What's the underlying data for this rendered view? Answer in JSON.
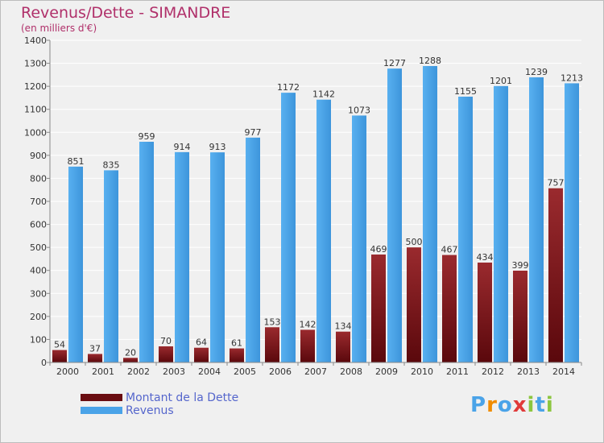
{
  "chart_data": {
    "type": "bar",
    "title": "Revenus/Dette - SIMANDRE",
    "subtitle": "(en milliers d'€)",
    "categories": [
      "2000",
      "2001",
      "2002",
      "2003",
      "2004",
      "2005",
      "2006",
      "2007",
      "2008",
      "2009",
      "2010",
      "2011",
      "2012",
      "2013",
      "2014"
    ],
    "series": [
      {
        "name": "Montant de la Dette",
        "color": "#7b1418",
        "values": [
          54,
          37,
          20,
          70,
          64,
          61,
          153,
          142,
          134,
          469,
          500,
          467,
          434,
          399,
          757
        ]
      },
      {
        "name": "Revenus",
        "color": "#4aa3e8",
        "values": [
          851,
          835,
          959,
          914,
          913,
          977,
          1172,
          1142,
          1073,
          1277,
          1288,
          1155,
          1201,
          1239,
          1213
        ]
      }
    ],
    "ylim": [
      0,
      1400
    ],
    "yticks": [
      0,
      100,
      200,
      300,
      400,
      500,
      600,
      700,
      800,
      900,
      1000,
      1100,
      1200,
      1300,
      1400
    ],
    "grid": true,
    "legend_position": "bottom-left"
  },
  "logo": {
    "text": "Proxiti",
    "letters": [
      "P",
      "r",
      "o",
      "x",
      "i",
      "t",
      "i"
    ],
    "colors": [
      "#4aa3e8",
      "#f08c00",
      "#4aa3e8",
      "#e03a3a",
      "#8cc63f",
      "#4aa3e8",
      "#8cc63f"
    ]
  }
}
